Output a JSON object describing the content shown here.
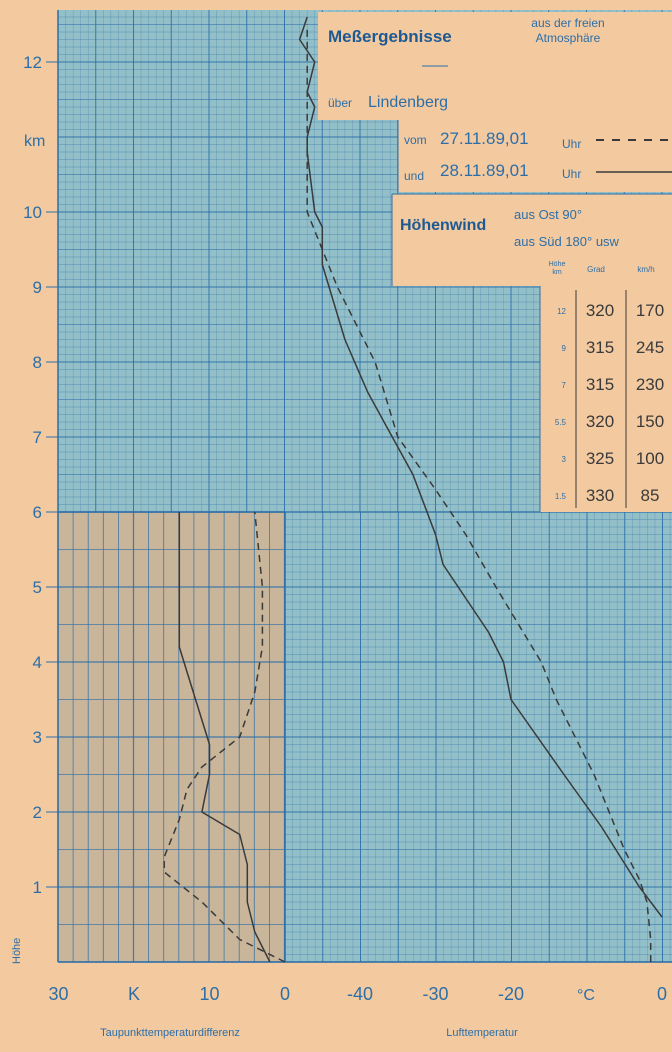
{
  "header": {
    "title": "Meßergebnisse",
    "subtitle_line1": "aus der freien",
    "subtitle_line2": "Atmosphäre",
    "location_prefix": "über",
    "location": "Lindenberg",
    "series1_prefix": "vom",
    "series1_date": "27.11.89,01",
    "series1_unit": "Uhr",
    "series2_prefix": "und",
    "series2_date": "28.11.89,01",
    "series2_unit": "Uhr"
  },
  "wind_table": {
    "title": "Höhenwind",
    "note_line1": "aus Ost  90°",
    "note_line2": "aus Süd 180° usw",
    "col_height_line1": "Höhe",
    "col_height_line2": "km",
    "col_direction": "Grad",
    "col_speed": "km/h",
    "rows": [
      {
        "height": "12",
        "direction": "320",
        "speed": "170"
      },
      {
        "height": "9",
        "direction": "315",
        "speed": "245"
      },
      {
        "height": "7",
        "direction": "315",
        "speed": "230"
      },
      {
        "height": "5.5",
        "direction": "320",
        "speed": "150"
      },
      {
        "height": "3",
        "direction": "325",
        "speed": "100"
      },
      {
        "height": "1.5",
        "direction": "330",
        "speed": "85"
      }
    ]
  },
  "axes": {
    "y_unit": "km",
    "y_axis_label": "Höhe",
    "dewpoint_unit": "K",
    "temp_unit": "°C",
    "dewpoint_label": "Taupunkttemperaturdifferenz",
    "temp_label": "Lufttemperatur"
  },
  "colors": {
    "paper": "#f3c9a0",
    "grid": "#2c6fa8",
    "ink": "#3a3a3a"
  },
  "chart_data": [
    {
      "type": "line",
      "title": "",
      "xlabel": "Lufttemperatur",
      "ylabel": "Höhe",
      "x_unit": "°C",
      "y_unit": "km",
      "xlim": [
        -50,
        0
      ],
      "ylim": [
        0,
        12.6
      ],
      "x_ticks": [
        -40,
        -30,
        -20,
        0
      ],
      "x_tick_labels": [
        "-40",
        "-30",
        "-20",
        "0"
      ],
      "y_ticks": [
        1,
        2,
        3,
        4,
        5,
        6,
        7,
        8,
        9,
        10,
        12
      ],
      "y_tick_labels": [
        "1",
        "2",
        "3",
        "4",
        "5",
        "6",
        "7",
        "8",
        "9",
        "10",
        "12"
      ],
      "grid": true,
      "legend": "top-right",
      "series": [
        {
          "name": "vom 27.11.89,01Uhr",
          "style": "dashed",
          "points": [
            [
              -1.5,
              0
            ],
            [
              -1.5,
              0.3
            ],
            [
              -2,
              0.8
            ],
            [
              -3,
              1.1
            ],
            [
              -5,
              1.5
            ],
            [
              -9,
              2.5
            ],
            [
              -14,
              3.5
            ],
            [
              -16,
              4.0
            ],
            [
              -22,
              5.0
            ],
            [
              -26,
              5.7
            ],
            [
              -30,
              6.3
            ],
            [
              -35,
              7.0
            ],
            [
              -38,
              8.0
            ],
            [
              -43,
              9.0
            ],
            [
              -47,
              10.0
            ],
            [
              -47,
              11.0
            ],
            [
              -47,
              11.5
            ],
            [
              -47,
              12.0
            ],
            [
              -47,
              12.5
            ]
          ]
        },
        {
          "name": "und 28.11.89,01Uhr",
          "style": "solid",
          "points": [
            [
              0,
              0.6
            ],
            [
              -3,
              1.0
            ],
            [
              -8,
              1.8
            ],
            [
              -13,
              2.5
            ],
            [
              -20,
              3.5
            ],
            [
              -21,
              4.0
            ],
            [
              -23,
              4.4
            ],
            [
              -29,
              5.3
            ],
            [
              -30,
              5.7
            ],
            [
              -33,
              6.5
            ],
            [
              -39,
              7.6
            ],
            [
              -42,
              8.3
            ],
            [
              -45,
              9.3
            ],
            [
              -45,
              9.8
            ],
            [
              -46,
              10.0
            ],
            [
              -47,
              10.8
            ],
            [
              -47,
              11.0
            ],
            [
              -46,
              11.4
            ],
            [
              -47,
              11.6
            ],
            [
              -46,
              12.0
            ],
            [
              -48,
              12.3
            ],
            [
              -47,
              12.6
            ]
          ]
        }
      ]
    },
    {
      "type": "line",
      "title": "",
      "xlabel": "Taupunkttemperaturdifferenz",
      "ylabel": "Höhe",
      "x_unit": "K",
      "xlim": [
        30,
        0
      ],
      "ylim": [
        0,
        6
      ],
      "x_ticks": [
        30,
        10,
        0
      ],
      "x_tick_labels": [
        "30",
        "10",
        "0"
      ],
      "grid": true,
      "series": [
        {
          "name": "vom 27.11.89,01Uhr",
          "style": "dashed",
          "points": [
            [
              0,
              0
            ],
            [
              6,
              0.3
            ],
            [
              11,
              0.8
            ],
            [
              16,
              1.2
            ],
            [
              16,
              1.4
            ],
            [
              14,
              1.9
            ],
            [
              13,
              2.3
            ],
            [
              11,
              2.6
            ],
            [
              6,
              3.0
            ],
            [
              4,
              3.6
            ],
            [
              3,
              4.2
            ],
            [
              3,
              5.0
            ],
            [
              4,
              6.0
            ]
          ]
        },
        {
          "name": "und 28.11.89,01Uhr",
          "style": "solid",
          "points": [
            [
              2,
              0
            ],
            [
              4,
              0.4
            ],
            [
              5,
              0.8
            ],
            [
              5,
              1.3
            ],
            [
              6,
              1.7
            ],
            [
              11,
              2.0
            ],
            [
              10,
              2.5
            ],
            [
              10,
              2.9
            ],
            [
              14,
              4.2
            ],
            [
              14,
              5.0
            ],
            [
              14,
              6.0
            ]
          ]
        }
      ]
    }
  ]
}
